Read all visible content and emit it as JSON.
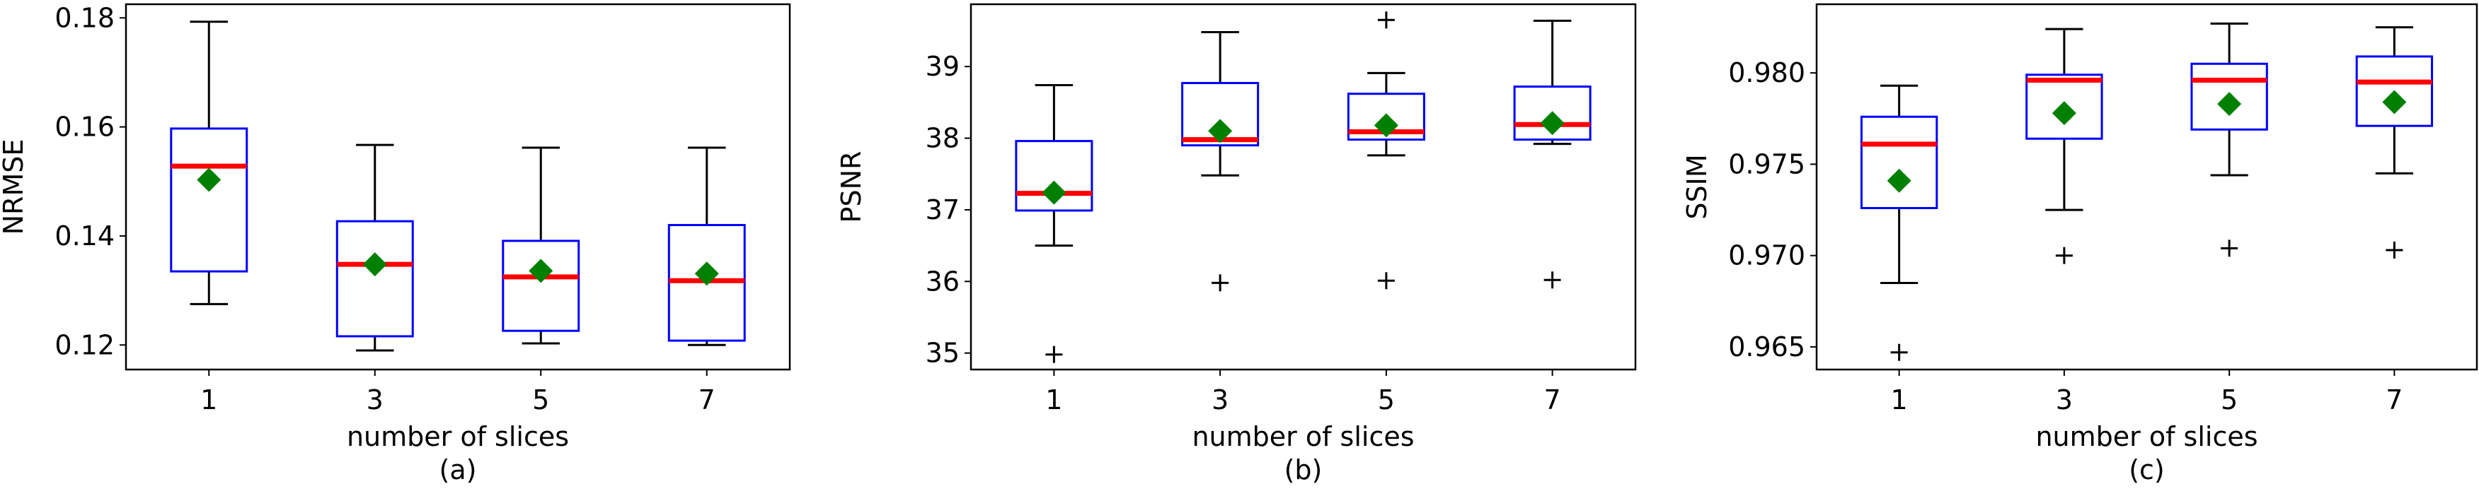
{
  "chart_data": [
    {
      "type": "box",
      "panel_label": "(a)",
      "xlabel": "number of slices",
      "ylabel": "NRMSE",
      "categories": [
        "1",
        "3",
        "5",
        "7"
      ],
      "ylim": [
        0.1155,
        0.1825
      ],
      "yticks": [
        0.12,
        0.14,
        0.16,
        0.18
      ],
      "ytick_labels": [
        "0.12",
        "0.14",
        "0.16",
        "0.18"
      ],
      "boxes": [
        {
          "whislo": 0.1275,
          "q1": 0.1335,
          "med": 0.1528,
          "q3": 0.1597,
          "whishi": 0.1793,
          "mean": 0.1503,
          "fliers": []
        },
        {
          "whislo": 0.119,
          "q1": 0.1216,
          "med": 0.1348,
          "q3": 0.1427,
          "whishi": 0.1567,
          "mean": 0.1348,
          "fliers": []
        },
        {
          "whislo": 0.1203,
          "q1": 0.1226,
          "med": 0.1325,
          "q3": 0.1391,
          "whishi": 0.1562,
          "mean": 0.1336,
          "fliers": []
        },
        {
          "whislo": 0.12,
          "q1": 0.1208,
          "med": 0.1318,
          "q3": 0.142,
          "whishi": 0.1562,
          "mean": 0.1331,
          "fliers": []
        }
      ]
    },
    {
      "type": "box",
      "panel_label": "(b)",
      "xlabel": "number of slices",
      "ylabel": "PSNR",
      "categories": [
        "1",
        "3",
        "5",
        "7"
      ],
      "ylim": [
        34.77,
        39.87
      ],
      "yticks": [
        35,
        36,
        37,
        38,
        39
      ],
      "ytick_labels": [
        "35",
        "36",
        "37",
        "38",
        "39"
      ],
      "boxes": [
        {
          "whislo": 36.5,
          "q1": 36.99,
          "med": 37.23,
          "q3": 37.96,
          "whishi": 38.74,
          "mean": 37.24,
          "fliers": [
            34.98
          ]
        },
        {
          "whislo": 37.48,
          "q1": 37.9,
          "med": 37.98,
          "q3": 38.77,
          "whishi": 39.48,
          "mean": 38.1,
          "fliers": [
            35.98
          ]
        },
        {
          "whislo": 37.76,
          "q1": 37.98,
          "med": 38.09,
          "q3": 38.62,
          "whishi": 38.91,
          "mean": 38.18,
          "fliers": [
            36.01,
            39.65
          ]
        },
        {
          "whislo": 37.92,
          "q1": 37.98,
          "med": 38.19,
          "q3": 38.72,
          "whishi": 39.64,
          "mean": 38.21,
          "fliers": [
            36.02
          ]
        }
      ]
    },
    {
      "type": "box",
      "panel_label": "(c)",
      "xlabel": "number of slices",
      "ylabel": "SSIM",
      "categories": [
        "1",
        "3",
        "5",
        "7"
      ],
      "ylim": [
        0.96376,
        0.98376
      ],
      "yticks": [
        0.965,
        0.97,
        0.975,
        0.98
      ],
      "ytick_labels": [
        "0.965",
        "0.970",
        "0.975",
        "0.980"
      ],
      "boxes": [
        {
          "whislo": 0.9685,
          "q1": 0.9726,
          "med": 0.9761,
          "q3": 0.9776,
          "whishi": 0.9793,
          "mean": 0.9741,
          "fliers": [
            0.9647
          ]
        },
        {
          "whislo": 0.9725,
          "q1": 0.9764,
          "med": 0.9796,
          "q3": 0.9799,
          "whishi": 0.9824,
          "mean": 0.9778,
          "fliers": [
            0.97
          ]
        },
        {
          "whislo": 0.9744,
          "q1": 0.9769,
          "med": 0.9796,
          "q3": 0.9805,
          "whishi": 0.9827,
          "mean": 0.9783,
          "fliers": [
            0.9704
          ]
        },
        {
          "whislo": 0.9745,
          "q1": 0.9771,
          "med": 0.9795,
          "q3": 0.9809,
          "whishi": 0.9825,
          "mean": 0.9784,
          "fliers": [
            0.9703
          ]
        }
      ]
    }
  ],
  "style": {
    "box_color": "#0000ff",
    "median_color": "#ff0000",
    "mean_color": "#008000",
    "whisker_color": "#000000",
    "flier_marker": "+"
  }
}
